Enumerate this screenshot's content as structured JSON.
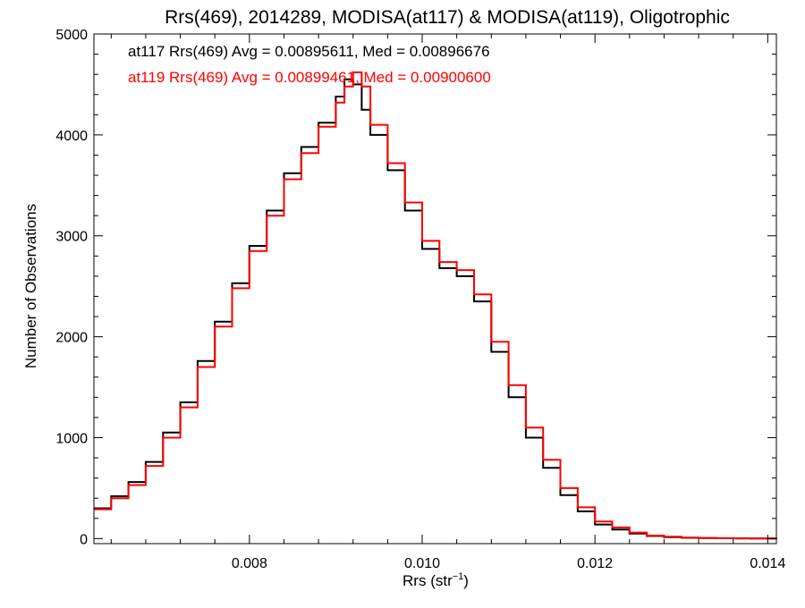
{
  "chart_data": {
    "type": "line",
    "title": "Rrs(469), 2014289, MODISA(at117) & MODISA(at119), Oligotrophic",
    "xlabel": "Rrs (str",
    "xlabel_sup": "−1",
    "xlabel_end": ")",
    "ylabel": "Number of Observations",
    "xlim": [
      0.0062,
      0.0141
    ],
    "ylim": [
      -50,
      5000
    ],
    "xticks": [
      0.008,
      0.01,
      0.012,
      0.014
    ],
    "xtick_labels": [
      "0.008",
      "0.010",
      "0.012",
      "0.014"
    ],
    "yticks": [
      0,
      1000,
      2000,
      3000,
      4000,
      5000
    ],
    "ytick_labels": [
      "0",
      "1000",
      "2000",
      "3000",
      "4000",
      "5000"
    ],
    "grid": false,
    "annotations": [
      {
        "text": "at117 Rrs(469) Avg = 0.00895611, Med = 0.00896676",
        "color": "#000000"
      },
      {
        "text": "at119 Rrs(469) Avg = 0.00899461, Med = 0.00900600",
        "color": "#ff0000"
      }
    ],
    "series": [
      {
        "color": "#000000",
        "x": [
          0.0062,
          0.0064,
          0.0066,
          0.0068,
          0.007,
          0.0072,
          0.0074,
          0.0076,
          0.0078,
          0.008,
          0.0082,
          0.0084,
          0.0086,
          0.0088,
          0.009,
          0.0091,
          0.0092,
          0.0093,
          0.0094,
          0.0096,
          0.0098,
          0.01,
          0.0102,
          0.0104,
          0.0106,
          0.0108,
          0.011,
          0.0112,
          0.0114,
          0.0116,
          0.0118,
          0.012,
          0.0122,
          0.0124,
          0.0126,
          0.0128,
          0.013,
          0.0132,
          0.0134,
          0.0136,
          0.0138,
          0.0141
        ],
        "y": [
          300,
          420,
          560,
          760,
          1050,
          1350,
          1760,
          2150,
          2530,
          2900,
          3250,
          3620,
          3880,
          4120,
          4380,
          4550,
          4500,
          4250,
          4000,
          3650,
          3250,
          2870,
          2680,
          2600,
          2350,
          1850,
          1400,
          1000,
          700,
          430,
          270,
          140,
          90,
          50,
          25,
          15,
          8,
          5,
          3,
          2,
          1,
          0
        ]
      },
      {
        "color": "#ff0000",
        "x": [
          0.0062,
          0.0064,
          0.0066,
          0.0068,
          0.007,
          0.0072,
          0.0074,
          0.0076,
          0.0078,
          0.008,
          0.0082,
          0.0084,
          0.0086,
          0.0088,
          0.009,
          0.0091,
          0.0092,
          0.0093,
          0.0094,
          0.0096,
          0.0098,
          0.01,
          0.0102,
          0.0104,
          0.0106,
          0.0108,
          0.011,
          0.0112,
          0.0114,
          0.0116,
          0.0118,
          0.012,
          0.0122,
          0.0124,
          0.0126,
          0.0128,
          0.013,
          0.0132,
          0.0134,
          0.0136,
          0.0138,
          0.0141
        ],
        "y": [
          290,
          400,
          530,
          720,
          1000,
          1300,
          1700,
          2100,
          2480,
          2850,
          3200,
          3560,
          3820,
          4080,
          4320,
          4480,
          4620,
          4480,
          4100,
          3720,
          3330,
          2950,
          2740,
          2660,
          2420,
          1950,
          1520,
          1100,
          780,
          500,
          310,
          170,
          110,
          60,
          30,
          18,
          10,
          6,
          4,
          2,
          1,
          0
        ]
      }
    ]
  }
}
